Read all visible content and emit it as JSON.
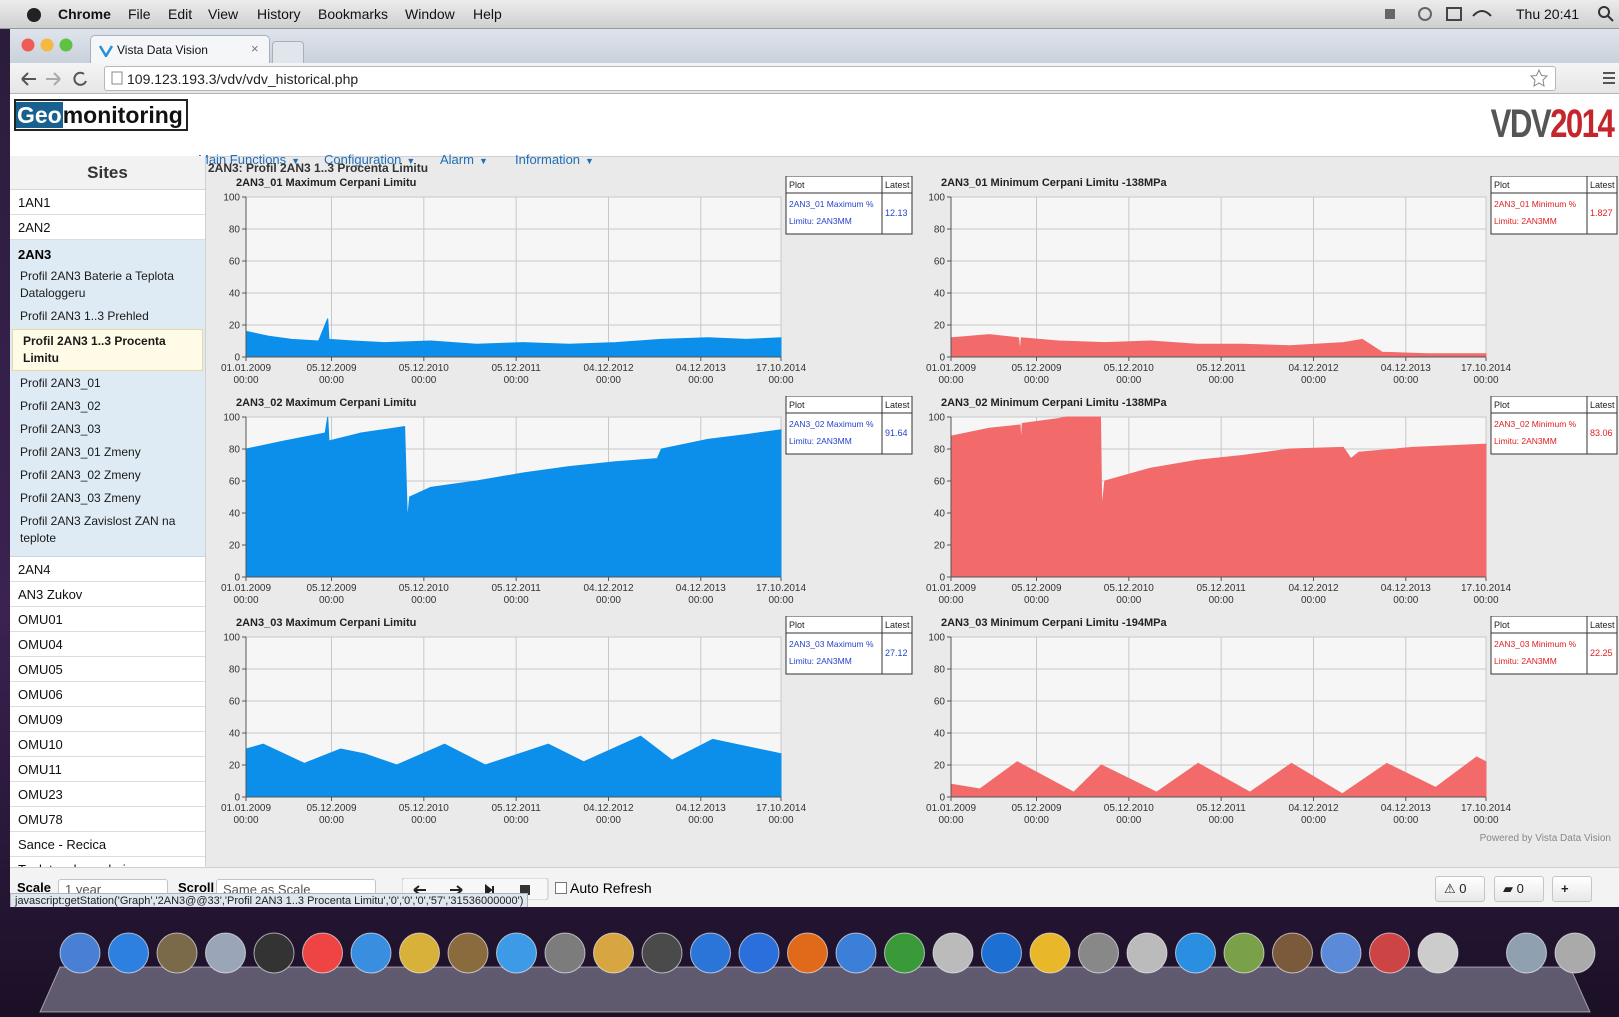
{
  "menubar": {
    "items": [
      "Chrome",
      "File",
      "Edit",
      "View",
      "History",
      "Bookmarks",
      "Window",
      "Help"
    ],
    "clock": "Thu 20:41"
  },
  "tab": {
    "title": "Vista Data Vision"
  },
  "address": "109.123.193.3/vdv/vdv_historical.php",
  "header": {
    "logo_a": "Geo",
    "logo_b": "monitoring",
    "nav": [
      "Main Functions",
      "Configuration",
      "Alarm",
      "Information"
    ],
    "brand_a": "VDV",
    "brand_b": "2014"
  },
  "sidebar": {
    "title": "Sites",
    "items": [
      {
        "label": "1AN1"
      },
      {
        "label": "2AN2"
      },
      {
        "label": "2AN3",
        "expanded": true,
        "children": [
          {
            "label": "Profil 2AN3 Baterie a Teplota Dataloggeru"
          },
          {
            "label": "Profil 2AN3 1..3 Prehled"
          },
          {
            "label": "Profil 2AN3 1..3 Procenta Limitu",
            "selected": true
          },
          {
            "label": "Profil 2AN3_01"
          },
          {
            "label": "Profil 2AN3_02"
          },
          {
            "label": "Profil 2AN3_03"
          },
          {
            "label": "Profil 2AN3_01 Zmeny"
          },
          {
            "label": "Profil 2AN3_02 Zmeny"
          },
          {
            "label": "Profil 2AN3_03 Zmeny"
          },
          {
            "label": "Profil 2AN3 Zavislost ZAN na teplote"
          }
        ]
      },
      {
        "label": "2AN4"
      },
      {
        "label": "AN3 Zukov"
      },
      {
        "label": "OMU01"
      },
      {
        "label": "OMU04"
      },
      {
        "label": "OMU05"
      },
      {
        "label": "OMU06"
      },
      {
        "label": "OMU09"
      },
      {
        "label": "OMU10"
      },
      {
        "label": "OMU11"
      },
      {
        "label": "OMU23"
      },
      {
        "label": "OMU78"
      },
      {
        "label": "Sance - Recica"
      },
      {
        "label": "Teplota v kancelari"
      }
    ]
  },
  "page_title": "2AN3: Profil 2AN3 1..3 Procenta Limitu",
  "chart_data": [
    {
      "type": "area",
      "title": "2AN3_01 Maximum Cerpani Limitu",
      "color": "#0b8fea",
      "x": [
        "2009-01-01",
        "2009-04-01",
        "2009-07-01",
        "2009-10-15",
        "2009-11-20",
        "2009-11-25",
        "2010-03-01",
        "2010-07-01",
        "2011-01-01",
        "2011-07-01",
        "2012-01-01",
        "2012-07-01",
        "2013-01-01",
        "2013-07-01",
        "2014-01-01",
        "2014-06-01",
        "2014-10-17"
      ],
      "values": [
        16,
        13,
        11,
        10,
        24,
        11,
        10,
        9,
        10,
        8,
        9,
        8,
        9,
        11,
        12,
        11,
        12
      ],
      "xlim": [
        "2009-01-01",
        "2014-10-17"
      ],
      "xticks": [
        {
          "value": "2009-01-01",
          "label": "01.01.2009 00:00"
        },
        {
          "value": "2009-12-05",
          "label": "05.12.2009 00:00"
        },
        {
          "value": "2010-12-05",
          "label": "05.12.2010 00:00"
        },
        {
          "value": "2011-12-05",
          "label": "05.12.2011 00:00"
        },
        {
          "value": "2012-12-04",
          "label": "04.12.2012 00:00"
        },
        {
          "value": "2013-12-04",
          "label": "04.12.2013 00:00"
        },
        {
          "value": "2014-10-17",
          "label": "17.10.2014 00:00"
        }
      ],
      "ylim": [
        0,
        100
      ],
      "yticks": [
        0,
        20,
        40,
        60,
        80,
        100
      ],
      "grid": true,
      "legend": {
        "header": [
          "Plot",
          "Latest"
        ],
        "lines": [
          "2AN3_01 Maximum %",
          "Limitu: 2AN3MM"
        ],
        "latest": 12.13,
        "color": "#2643c9"
      }
    },
    {
      "type": "area",
      "title": "2AN3_01 Minimum Cerpani Limitu -138MPa",
      "color": "#f26a6a",
      "x": [
        "2009-01-01",
        "2009-06-01",
        "2009-09-25",
        "2009-10-01",
        "2009-10-06",
        "2010-03-01",
        "2010-09-01",
        "2011-03-01",
        "2011-09-01",
        "2012-03-01",
        "2012-09-01",
        "2013-04-01",
        "2013-06-15",
        "2013-09-01",
        "2014-03-01",
        "2014-10-17"
      ],
      "values": [
        12,
        14,
        12,
        3,
        12,
        10,
        9,
        10,
        8,
        8,
        7,
        9,
        11,
        3,
        2,
        2
      ],
      "xlim": [
        "2009-01-01",
        "2014-10-17"
      ],
      "xticks": [
        {
          "value": "2009-01-01",
          "label": "01.01.2009 00:00"
        },
        {
          "value": "2009-12-05",
          "label": "05.12.2009 00:00"
        },
        {
          "value": "2010-12-05",
          "label": "05.12.2010 00:00"
        },
        {
          "value": "2011-12-05",
          "label": "05.12.2011 00:00"
        },
        {
          "value": "2012-12-04",
          "label": "04.12.2012 00:00"
        },
        {
          "value": "2013-12-04",
          "label": "04.12.2013 00:00"
        },
        {
          "value": "2014-10-17",
          "label": "17.10.2014 00:00"
        }
      ],
      "ylim": [
        0,
        100
      ],
      "yticks": [
        0,
        20,
        40,
        60,
        80,
        100
      ],
      "grid": true,
      "legend": {
        "header": [
          "Plot",
          "Latest"
        ],
        "lines": [
          "2AN3_01 Minimum %",
          "Limitu: 2AN3MM"
        ],
        "latest": 1.827,
        "color": "#e02020"
      }
    },
    {
      "type": "area",
      "title": "2AN3_02 Maximum Cerpani Limitu",
      "color": "#0b8fea",
      "x": [
        "2009-01-01",
        "2009-06-01",
        "2009-11-10",
        "2009-11-20",
        "2009-11-25",
        "2010-04-01",
        "2010-09-20",
        "2010-10-01",
        "2010-10-10",
        "2011-01-01",
        "2011-07-01",
        "2012-01-01",
        "2012-07-01",
        "2013-01-01",
        "2013-06-15",
        "2013-07-01",
        "2014-01-01",
        "2014-06-01",
        "2014-10-17"
      ],
      "values": [
        80,
        85,
        90,
        100,
        85,
        90,
        94,
        35,
        50,
        56,
        60,
        65,
        69,
        72,
        74,
        80,
        86,
        89,
        92
      ],
      "xlim": [
        "2009-01-01",
        "2014-10-17"
      ],
      "xticks": [
        {
          "value": "2009-01-01",
          "label": "01.01.2009 00:00"
        },
        {
          "value": "2009-12-05",
          "label": "05.12.2009 00:00"
        },
        {
          "value": "2010-12-05",
          "label": "05.12.2010 00:00"
        },
        {
          "value": "2011-12-05",
          "label": "05.12.2011 00:00"
        },
        {
          "value": "2012-12-04",
          "label": "04.12.2012 00:00"
        },
        {
          "value": "2013-12-04",
          "label": "04.12.2013 00:00"
        },
        {
          "value": "2014-10-17",
          "label": "17.10.2014 00:00"
        }
      ],
      "ylim": [
        0,
        100
      ],
      "yticks": [
        0,
        20,
        40,
        60,
        80,
        100
      ],
      "grid": true,
      "legend": {
        "header": [
          "Plot",
          "Latest"
        ],
        "lines": [
          "2AN3_02 Maximum %",
          "Limitu: 2AN3MM"
        ],
        "latest": 91.64,
        "color": "#2643c9"
      }
    },
    {
      "type": "area",
      "title": "2AN3_02 Minimum Cerpani Limitu -138MPa",
      "color": "#f26a6a",
      "x": [
        "2009-01-01",
        "2009-06-01",
        "2009-10-01",
        "2009-10-05",
        "2009-10-10",
        "2010-03-01",
        "2010-04-01",
        "2010-08-15",
        "2010-08-20",
        "2010-09-01",
        "2011-03-01",
        "2011-09-01",
        "2012-03-01",
        "2012-09-01",
        "2013-04-01",
        "2013-05-01",
        "2013-06-01",
        "2014-01-01",
        "2014-10-17"
      ],
      "values": [
        88,
        93,
        95,
        83,
        96,
        99,
        100,
        100,
        42,
        60,
        68,
        73,
        76,
        80,
        81,
        74,
        78,
        81,
        83
      ],
      "xlim": [
        "2009-01-01",
        "2014-10-17"
      ],
      "xticks": [
        {
          "value": "2009-01-01",
          "label": "01.01.2009 00:00"
        },
        {
          "value": "2009-12-05",
          "label": "05.12.2009 00:00"
        },
        {
          "value": "2010-12-05",
          "label": "05.12.2010 00:00"
        },
        {
          "value": "2011-12-05",
          "label": "05.12.2011 00:00"
        },
        {
          "value": "2012-12-04",
          "label": "04.12.2012 00:00"
        },
        {
          "value": "2013-12-04",
          "label": "04.12.2013 00:00"
        },
        {
          "value": "2014-10-17",
          "label": "17.10.2014 00:00"
        }
      ],
      "ylim": [
        0,
        100
      ],
      "yticks": [
        0,
        20,
        40,
        60,
        80,
        100
      ],
      "grid": true,
      "legend": {
        "header": [
          "Plot",
          "Latest"
        ],
        "lines": [
          "2AN3_02 Minimum %",
          "Limitu: 2AN3MM"
        ],
        "latest": 83.06,
        "color": "#e02020"
      }
    },
    {
      "type": "area",
      "title": "2AN3_03 Maximum Cerpani Limitu",
      "color": "#0b8fea",
      "x": [
        "2009-01-01",
        "2009-03-10",
        "2009-08-20",
        "2010-01-10",
        "2010-04-15",
        "2010-08-20",
        "2011-02-25",
        "2011-08-05",
        "2012-04-10",
        "2012-08-28",
        "2013-04-10",
        "2013-08-12",
        "2014-01-20",
        "2014-10-17"
      ],
      "values": [
        30,
        33,
        21,
        30,
        27,
        20,
        33,
        20,
        33,
        22,
        38,
        23,
        36,
        27
      ],
      "xlim": [
        "2009-01-01",
        "2014-10-17"
      ],
      "xticks": [
        {
          "value": "2009-01-01",
          "label": "01.01.2009 00:00"
        },
        {
          "value": "2009-12-05",
          "label": "05.12.2009 00:00"
        },
        {
          "value": "2010-12-05",
          "label": "05.12.2010 00:00"
        },
        {
          "value": "2011-12-05",
          "label": "05.12.2011 00:00"
        },
        {
          "value": "2012-12-04",
          "label": "04.12.2012 00:00"
        },
        {
          "value": "2013-12-04",
          "label": "04.12.2013 00:00"
        },
        {
          "value": "2014-10-17",
          "label": "17.10.2014 00:00"
        }
      ],
      "ylim": [
        0,
        100
      ],
      "yticks": [
        0,
        20,
        40,
        60,
        80,
        100
      ],
      "grid": true,
      "legend": {
        "header": [
          "Plot",
          "Latest"
        ],
        "lines": [
          "2AN3_03 Maximum %",
          "Limitu: 2AN3MM"
        ],
        "latest": 27.12,
        "color": "#2643c9"
      }
    },
    {
      "type": "area",
      "title": "2AN3_03 Minimum Cerpani Limitu -194MPa",
      "color": "#f26a6a",
      "x": [
        "2009-01-01",
        "2009-04-25",
        "2009-09-20",
        "2010-05-01",
        "2010-08-18",
        "2011-03-25",
        "2011-09-05",
        "2012-03-28",
        "2012-09-08",
        "2013-03-28",
        "2013-09-20",
        "2014-04-01",
        "2014-09-10",
        "2014-10-17"
      ],
      "values": [
        8,
        5,
        22,
        3,
        20,
        3,
        21,
        3,
        21,
        2,
        21,
        6,
        25,
        22
      ],
      "xlim": [
        "2009-01-01",
        "2014-10-17"
      ],
      "xticks": [
        {
          "value": "2009-01-01",
          "label": "01.01.2009 00:00"
        },
        {
          "value": "2009-12-05",
          "label": "05.12.2009 00:00"
        },
        {
          "value": "2010-12-05",
          "label": "05.12.2010 00:00"
        },
        {
          "value": "2011-12-05",
          "label": "05.12.2011 00:00"
        },
        {
          "value": "2012-12-04",
          "label": "04.12.2012 00:00"
        },
        {
          "value": "2013-12-04",
          "label": "04.12.2013 00:00"
        },
        {
          "value": "2014-10-17",
          "label": "17.10.2014 00:00"
        }
      ],
      "ylim": [
        0,
        100
      ],
      "yticks": [
        0,
        20,
        40,
        60,
        80,
        100
      ],
      "grid": true,
      "legend": {
        "header": [
          "Plot",
          "Latest"
        ],
        "lines": [
          "2AN3_03 Minimum %",
          "Limitu: 2AN3MM"
        ],
        "latest": 22.25,
        "color": "#e02020"
      }
    }
  ],
  "powered": "Powered by Vista Data Vision",
  "footer": {
    "scale_label": "Scale",
    "scale_value": "1 year",
    "scroll_label": "Scroll",
    "scroll_value": "Same as Scale",
    "auto_refresh": "Auto Refresh",
    "alarms": "0",
    "messages": "0"
  },
  "status": "javascript:getStation('Graph','2AN3@@33','Profil 2AN3 1..3 Procenta Limitu','0','0','0','57','31536000000')"
}
